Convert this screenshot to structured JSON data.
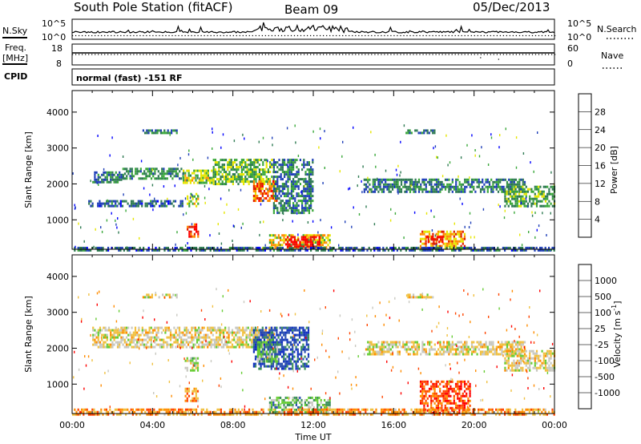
{
  "header": {
    "station": "South Pole Station (fitACF)",
    "beam": "Beam 09",
    "date": "05/Dec/2013"
  },
  "top_panels": {
    "nsky_label": "N.Sky",
    "nsky_ticks": [
      "10^5",
      "10^0"
    ],
    "nsearch_label": "N.Search",
    "nsearch_ticks": [
      "10^5",
      "10^0"
    ],
    "freq_label_1": "Freq.",
    "freq_label_2": "[MHz]",
    "freq_ticks": [
      "18",
      "8"
    ],
    "nave_label": "Nave",
    "nave_ticks": [
      "60",
      "0"
    ],
    "cpid_label": "CPID",
    "cpid_value": "normal (fast) -151 RF"
  },
  "chart_data": [
    {
      "type": "heatmap",
      "name": "power",
      "ylabel": "Slant Range [km]",
      "yticks": [
        "4000",
        "3000",
        "2000",
        "1000"
      ],
      "ylim": [
        180,
        4600
      ],
      "xlim_hours": [
        0,
        24
      ],
      "colorbar_label": "Power [dB]",
      "colorbar_ticks": [
        "28",
        "24",
        "20",
        "16",
        "12",
        "8",
        "4"
      ],
      "colorbar_colors": [
        "#0000ff",
        "#1f3fb8",
        "#2e7a52",
        "#3aa83a",
        "#e6e600",
        "#ff8c00",
        "#e02000",
        "#ff0000"
      ],
      "regions": [
        {
          "x0": 1.0,
          "x1": 2.5,
          "y0": 2050,
          "y1": 2350,
          "level": 0.3
        },
        {
          "x0": 2.5,
          "x1": 5.5,
          "y0": 2150,
          "y1": 2450,
          "level": 0.35
        },
        {
          "x0": 5.5,
          "x1": 7.0,
          "y0": 2000,
          "y1": 2400,
          "level": 0.5
        },
        {
          "x0": 7.0,
          "x1": 10.0,
          "y0": 2000,
          "y1": 2700,
          "level": 0.45
        },
        {
          "x0": 9.0,
          "x1": 10.2,
          "y0": 1500,
          "y1": 2100,
          "level": 0.75
        },
        {
          "x0": 10.0,
          "x1": 12.0,
          "y0": 1200,
          "y1": 2700,
          "level": 0.3
        },
        {
          "x0": 0.8,
          "x1": 5.5,
          "y0": 1350,
          "y1": 1550,
          "level": 0.25
        },
        {
          "x0": 5.7,
          "x1": 6.3,
          "y0": 1400,
          "y1": 1750,
          "level": 0.55
        },
        {
          "x0": 5.7,
          "x1": 6.3,
          "y0": 550,
          "y1": 900,
          "level": 0.85
        },
        {
          "x0": 9.8,
          "x1": 12.8,
          "y0": 200,
          "y1": 600,
          "level": 0.6
        },
        {
          "x0": 10.6,
          "x1": 12.3,
          "y0": 250,
          "y1": 550,
          "level": 0.95
        },
        {
          "x0": 14.5,
          "x1": 22.5,
          "y0": 1750,
          "y1": 2150,
          "level": 0.3
        },
        {
          "x0": 21.5,
          "x1": 24.0,
          "y0": 1350,
          "y1": 1950,
          "level": 0.4
        },
        {
          "x0": 17.3,
          "x1": 19.5,
          "y0": 200,
          "y1": 700,
          "level": 0.65
        },
        {
          "x0": 17.6,
          "x1": 18.4,
          "y0": 350,
          "y1": 550,
          "level": 0.95
        },
        {
          "x0": 3.5,
          "x1": 5.2,
          "y0": 3400,
          "y1": 3520,
          "level": 0.3
        },
        {
          "x0": 16.5,
          "x1": 18.0,
          "y0": 3400,
          "y1": 3520,
          "level": 0.3
        },
        {
          "x0": 0.0,
          "x1": 24.0,
          "y0": 180,
          "y1": 250,
          "level": 0.25
        }
      ]
    },
    {
      "type": "heatmap",
      "name": "velocity",
      "ylabel": "Slant Range [km]",
      "yticks": [
        "4000",
        "3000",
        "2000",
        "1000"
      ],
      "ylim": [
        180,
        4600
      ],
      "xlim_hours": [
        0,
        24
      ],
      "xticks": [
        "00:00",
        "04:00",
        "08:00",
        "12:00",
        "16:00",
        "20:00",
        "00:00"
      ],
      "xlabel": "Time UT",
      "colorbar_label_main": "Velocity",
      "colorbar_label_units": "[m s",
      "colorbar_label_exp": "-1",
      "colorbar_label_close": "]",
      "colorbar_ticks": [
        "1000",
        "500",
        "100",
        "25",
        "-25",
        "-100",
        "-500",
        "-1000"
      ],
      "colorbar_colors": [
        "#ff0000",
        "#ff4500",
        "#ff8c00",
        "#f0c040",
        "#c8c8c0",
        "#66cc33",
        "#3a8f5a",
        "#2a4fb0",
        "#1030c0"
      ],
      "regions": [
        {
          "x0": 1.0,
          "x1": 10.0,
          "y0": 2050,
          "y1": 2600,
          "level": 0.45
        },
        {
          "x0": 9.0,
          "x1": 11.8,
          "y0": 1400,
          "y1": 2600,
          "level": 0.85
        },
        {
          "x0": 9.2,
          "x1": 10.2,
          "y0": 1600,
          "y1": 2200,
          "level": 0.65
        },
        {
          "x0": 5.6,
          "x1": 6.3,
          "y0": 500,
          "y1": 900,
          "level": 0.3
        },
        {
          "x0": 5.6,
          "x1": 6.3,
          "y0": 1400,
          "y1": 1750,
          "level": 0.55
        },
        {
          "x0": 9.8,
          "x1": 12.8,
          "y0": 200,
          "y1": 650,
          "level": 0.65
        },
        {
          "x0": 14.5,
          "x1": 22.5,
          "y0": 1800,
          "y1": 2200,
          "level": 0.45
        },
        {
          "x0": 21.5,
          "x1": 24.0,
          "y0": 1400,
          "y1": 1950,
          "level": 0.45
        },
        {
          "x0": 17.3,
          "x1": 19.8,
          "y0": 200,
          "y1": 1100,
          "level": 0.15
        },
        {
          "x0": 0.0,
          "x1": 24.0,
          "y0": 180,
          "y1": 320,
          "level": 0.3
        },
        {
          "x0": 3.5,
          "x1": 5.2,
          "y0": 3400,
          "y1": 3520,
          "level": 0.45
        },
        {
          "x0": 16.5,
          "x1": 18.0,
          "y0": 3400,
          "y1": 3520,
          "level": 0.45
        }
      ]
    }
  ]
}
